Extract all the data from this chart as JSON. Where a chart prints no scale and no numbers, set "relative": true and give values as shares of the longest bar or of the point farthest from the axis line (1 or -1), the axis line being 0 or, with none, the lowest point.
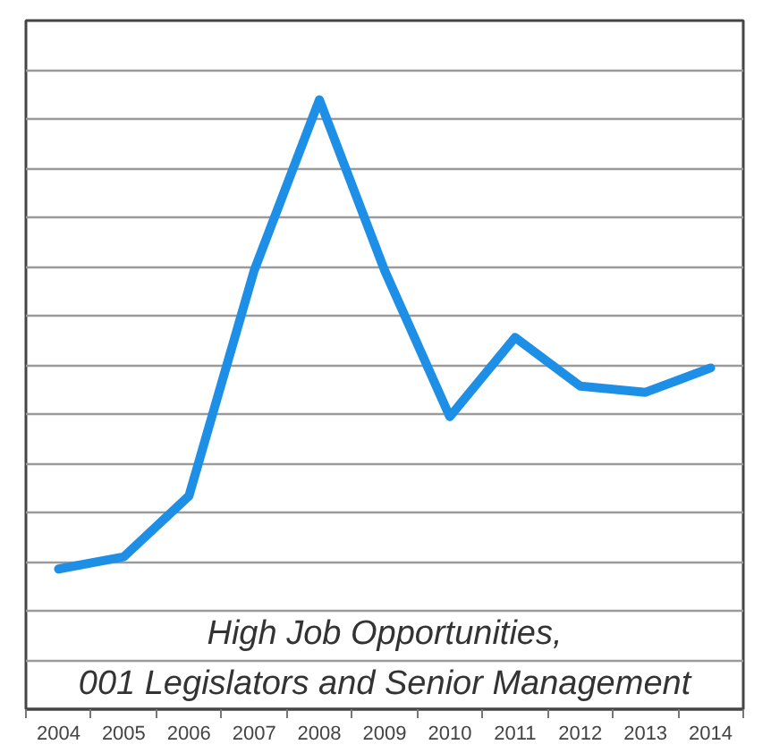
{
  "chart_data": {
    "type": "line",
    "title": "High Job Opportunities,",
    "subtitle": "001 Legislators and Senior Management",
    "categories": [
      "2004",
      "2005",
      "2006",
      "2007",
      "2008",
      "2009",
      "2010",
      "2011",
      "2012",
      "2013",
      "2014"
    ],
    "values": [
      0.23,
      0.25,
      0.35,
      0.72,
      1,
      0.72,
      0.48,
      0.61,
      0.53,
      0.52,
      0.56
    ],
    "color": "#1e8fe6",
    "relative": true,
    "grid": "y"
  }
}
